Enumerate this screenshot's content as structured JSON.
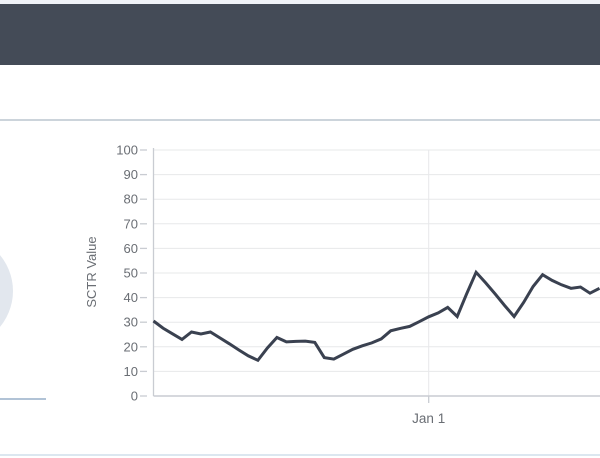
{
  "page": {
    "colors": {
      "header_bar": "#444b57",
      "top_strip": "#f0f3f8",
      "content_divider": "#ccd4db",
      "bottom_divider": "#dce7f0",
      "gauge_fill": "#e2e7ee",
      "gauge_baseline": "#b1c3d6",
      "axis_text": "#6a6e74",
      "gridline": "#e7e8ea",
      "axis_line": "#c9ccd2"
    }
  },
  "chart_data": {
    "type": "line",
    "title": "",
    "xlabel": "",
    "ylabel": "SCTR Value",
    "ylim": [
      0,
      100
    ],
    "yticks": [
      0,
      10,
      20,
      30,
      40,
      50,
      60,
      70,
      80,
      90,
      100
    ],
    "xticks": [
      {
        "label": "Jan 1",
        "index": 29
      }
    ],
    "grid": true,
    "legend_position": "none",
    "line_color": "#3a4150",
    "series": [
      {
        "name": "SCTR",
        "values": [
          30.5,
          27.6,
          25.3,
          23,
          26,
          25.2,
          26,
          23.6,
          21.2,
          18.7,
          16.3,
          14.5,
          19.5,
          23.8,
          22,
          22.2,
          22.3,
          21.8,
          15.6,
          15,
          17,
          19,
          20.4,
          21.6,
          23.2,
          26.5,
          27.5,
          28.3,
          30.2,
          32.2,
          33.8,
          36,
          32.3,
          41.5,
          50.3,
          46,
          41.5,
          36.8,
          32.3,
          38,
          44.5,
          49.3,
          47,
          45.2,
          43.8,
          44.3,
          41.8,
          43.8
        ]
      }
    ]
  }
}
